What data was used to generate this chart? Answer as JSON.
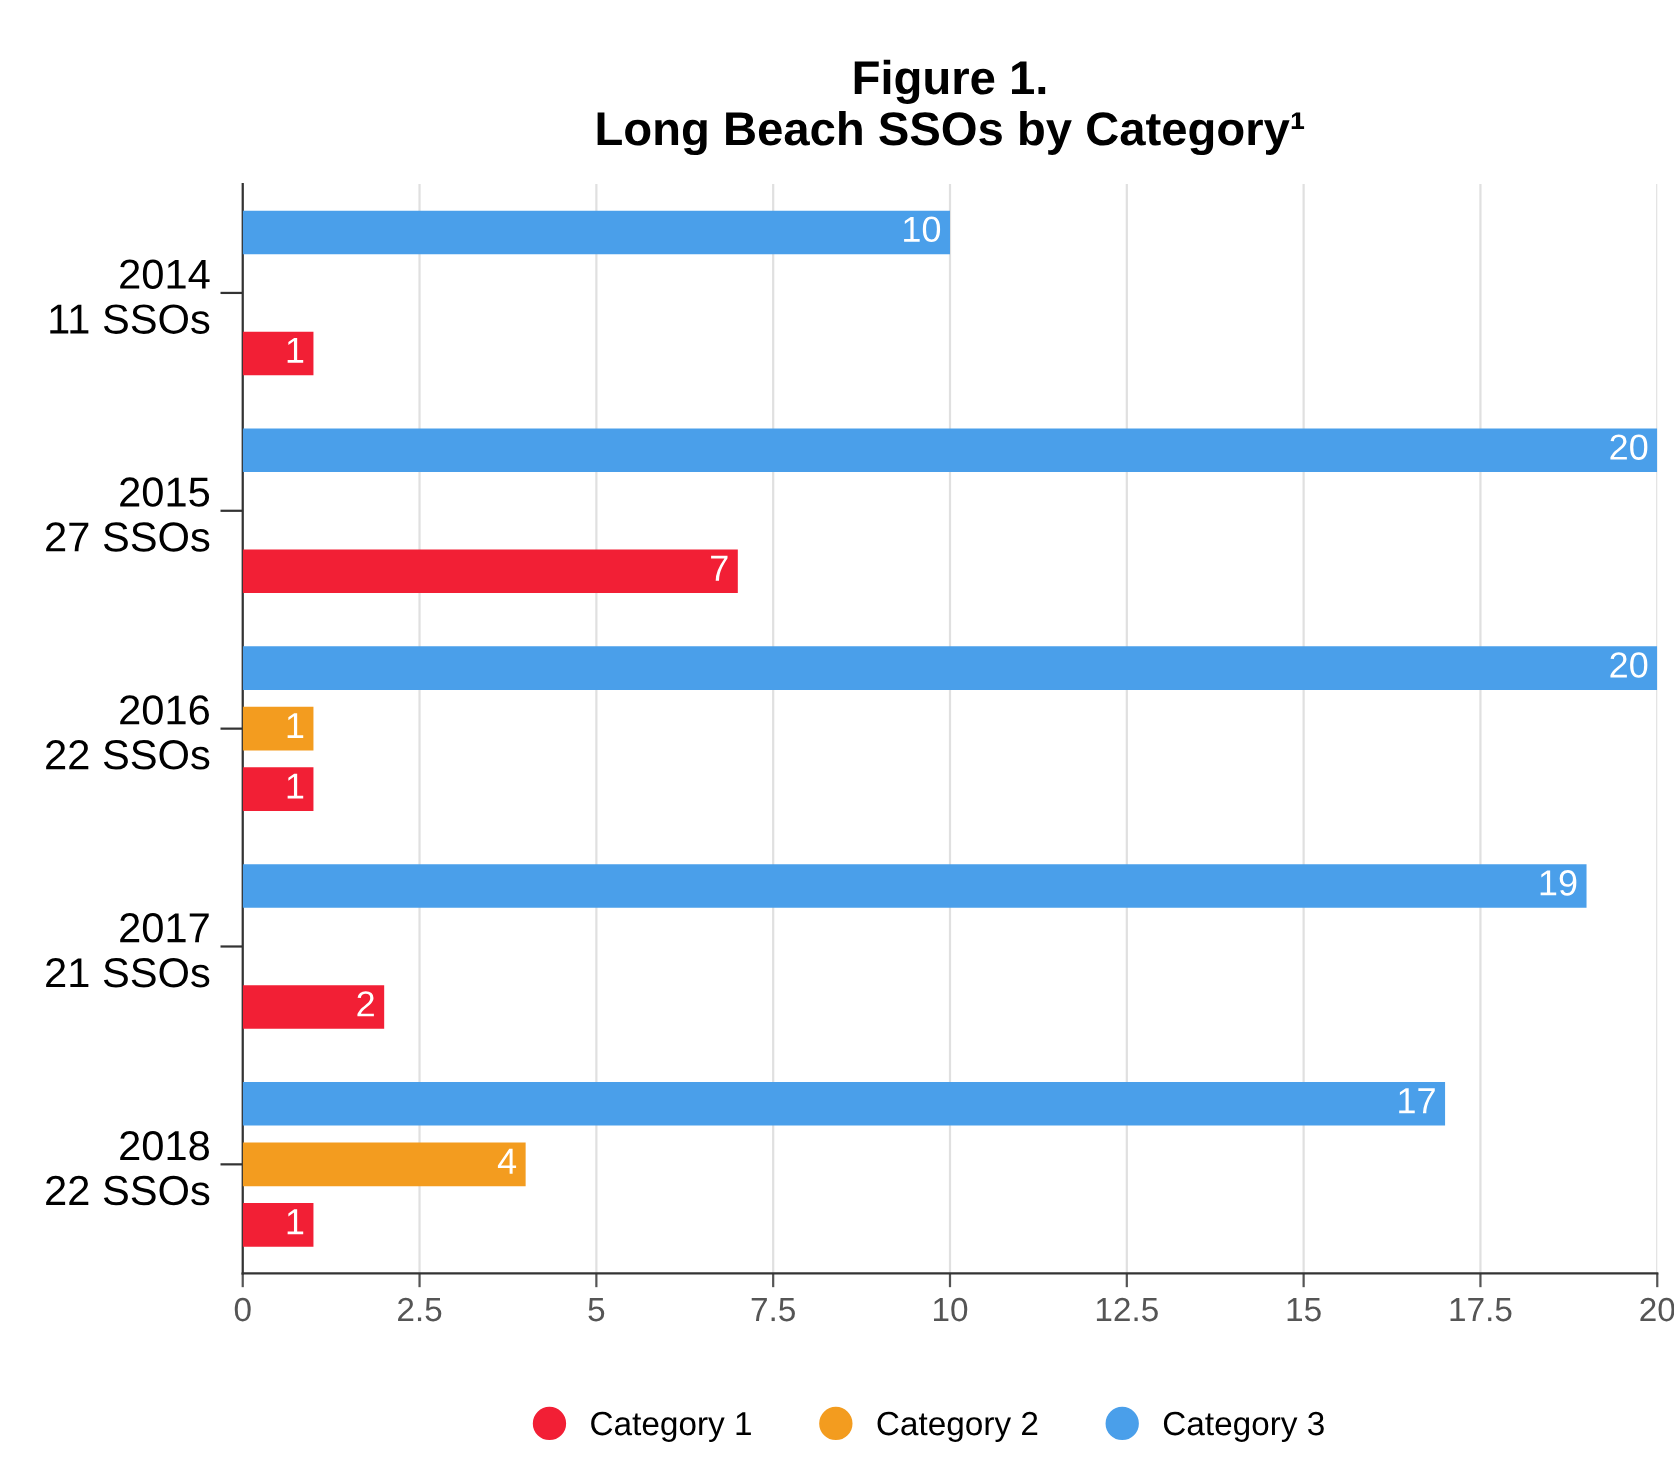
{
  "chart_data": {
    "type": "bar",
    "orientation": "horizontal",
    "title": "Figure 1.\nLong Beach SSOs by Category¹",
    "categories": [
      "2014\n11 SSOs",
      "2015\n27 SSOs",
      "2016\n22 SSOs",
      "2017\n21 SSOs",
      "2018\n22 SSOs"
    ],
    "series": [
      {
        "name": "Category 1",
        "color": "#f21f35",
        "values": [
          1,
          7,
          1,
          2,
          1
        ]
      },
      {
        "name": "Category 2",
        "color": "#f39c1f",
        "values": [
          null,
          null,
          1,
          null,
          4
        ]
      },
      {
        "name": "Category 3",
        "color": "#4a9fea",
        "values": [
          10,
          20,
          20,
          19,
          17
        ]
      }
    ],
    "xlim": [
      0,
      20
    ],
    "xticks": [
      0,
      2.5,
      5,
      7.5,
      10,
      12.5,
      15,
      17.5,
      20
    ],
    "grid": "x",
    "legend": "bottom",
    "data_labels": true
  }
}
